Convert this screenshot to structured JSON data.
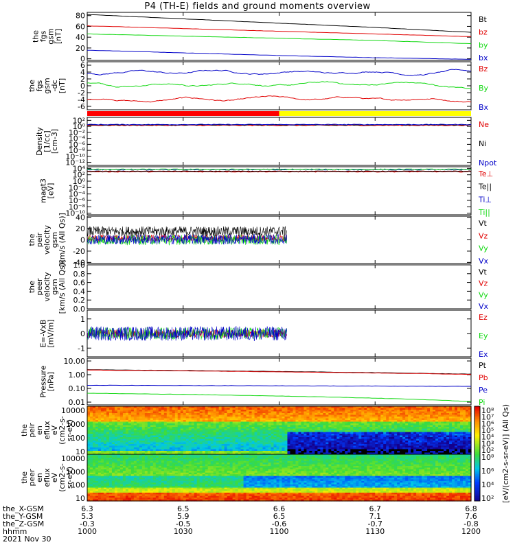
{
  "title": "P4 (TH-E) fields and ground moments overview",
  "date_label": "2021 Nov 30",
  "colors": {
    "black": "#000000",
    "red": "#e00000",
    "green": "#10d810",
    "blue": "#0000c8",
    "yellow": "#ffff00",
    "flag_red": "#ff0000"
  },
  "chart_data": [
    {
      "type": "line",
      "id": "fgs",
      "ylabel": [
        "the",
        "fgs",
        "gsm",
        "[nT]"
      ],
      "yticks": [
        "80",
        "60",
        "40",
        "20",
        "0"
      ],
      "ytick_values": [
        80,
        60,
        40,
        20,
        0
      ],
      "ylim": [
        -3,
        86
      ],
      "series": [
        {
          "name": "Bt",
          "color": "#000000",
          "x": [
            0,
            0.25,
            0.5,
            0.75,
            1
          ],
          "values": [
            82,
            74,
            66,
            58,
            49
          ]
        },
        {
          "name": "bz",
          "color": "#e00000",
          "x": [
            0,
            0.25,
            0.5,
            0.75,
            1
          ],
          "values": [
            61,
            56,
            51,
            46,
            41
          ]
        },
        {
          "name": "by",
          "color": "#10d810",
          "x": [
            0,
            0.25,
            0.5,
            0.75,
            1
          ],
          "values": [
            46,
            42,
            38,
            34,
            28
          ]
        },
        {
          "name": "bx",
          "color": "#0000c8",
          "x": [
            0,
            0.25,
            0.5,
            0.75,
            1
          ],
          "values": [
            16,
            11,
            6,
            2,
            -1
          ]
        }
      ]
    },
    {
      "type": "line",
      "id": "fgs-ac",
      "ylabel": [
        "the",
        "fgs",
        "gsm",
        "-dc",
        "[nT]"
      ],
      "yticks": [
        "6",
        "4",
        "2",
        "0",
        "-2",
        "-4",
        "-6"
      ],
      "ytick_values": [
        6,
        4,
        2,
        0,
        -2,
        -4,
        -6
      ],
      "ylim": [
        -7,
        7
      ],
      "series": [
        {
          "name": "Bz",
          "color": "#e00000",
          "base": -4,
          "amp": 0.6
        },
        {
          "name": "By",
          "color": "#10d810",
          "base": 0.5,
          "amp": 0.6
        },
        {
          "name": "Bx",
          "color": "#0000c8",
          "base": 4,
          "amp": 0.7
        }
      ]
    },
    {
      "type": "bar",
      "id": "flag",
      "segments": [
        {
          "from": 0,
          "to": 0.5,
          "color": "#ff0000"
        },
        {
          "from": 0.5,
          "to": 1,
          "color": "#ffff00"
        }
      ]
    },
    {
      "type": "line",
      "id": "density",
      "ylabel": [
        "Density",
        "[1/cc]",
        "[cm-3]"
      ],
      "yticks": [
        "10²",
        "10⁰",
        "10⁻²",
        "10⁻⁴",
        "10⁻⁶",
        "10⁻⁸",
        "10⁻¹⁰",
        "10⁻¹²"
      ],
      "ytick_values": [
        2,
        0,
        -2,
        -4,
        -6,
        -8,
        -10,
        -12
      ],
      "ylim": [
        -13,
        3
      ],
      "scale": "log",
      "series": [
        {
          "name": "Ne",
          "color": "#e00000",
          "value": 0.4
        },
        {
          "name": "Ni",
          "color": "#000000",
          "value": 0.5
        },
        {
          "name": "Npot",
          "color": "#0000c8",
          "value": 0.6
        }
      ]
    },
    {
      "type": "line",
      "id": "temperature",
      "ylabel": [
        "magt3",
        "[eV]"
      ],
      "yticks": [
        "10⁴",
        "10²",
        "10⁰",
        "10⁻²",
        "10⁻⁴",
        "10⁻⁶",
        "10⁻⁸",
        "10⁻¹⁰"
      ],
      "ytick_values": [
        4,
        2,
        0,
        -2,
        -4,
        -6,
        -8,
        -10
      ],
      "ylim": [
        -10.5,
        4.5
      ],
      "scale": "log",
      "series": [
        {
          "name": "Te⊥",
          "color": "#e00000",
          "value": 3.0
        },
        {
          "name": "Te||",
          "color": "#000000",
          "value": 3.1
        },
        {
          "name": "Ti⊥",
          "color": "#0000c8",
          "value": 3.6
        },
        {
          "name": "Ti||",
          "color": "#10d810",
          "value": 3.7
        }
      ]
    },
    {
      "type": "line",
      "id": "peir-velocity",
      "ylabel": [
        "the",
        "peir",
        "velocity",
        "gsm",
        "[km/s (All Qs)]"
      ],
      "yticks": [
        "40",
        "20",
        "0",
        "-20",
        "-40"
      ],
      "ytick_values": [
        40,
        20,
        0,
        -20,
        -40
      ],
      "ylim": [
        -42,
        42
      ],
      "data_end": 0.52,
      "series": [
        {
          "name": "Vt",
          "color": "#000000",
          "base": 15,
          "amp": 9
        },
        {
          "name": "Vz",
          "color": "#e00000",
          "base": 3,
          "amp": 6
        },
        {
          "name": "Vy",
          "color": "#10d810",
          "base": 0,
          "amp": 9
        },
        {
          "name": "Vx",
          "color": "#0000c8",
          "base": 1,
          "amp": 9
        }
      ]
    },
    {
      "type": "line",
      "id": "peer-velocity",
      "ylabel": [
        "the",
        "peer",
        "velocity",
        "gsm",
        "[km/s (All Qs)]"
      ],
      "yticks": [
        "1.0",
        "0.8",
        "0.6",
        "0.4",
        "0.2",
        "0.0"
      ],
      "ytick_values": [
        1,
        0.8,
        0.6,
        0.4,
        0.2,
        0
      ],
      "ylim": [
        0,
        1
      ],
      "series": [
        {
          "name": "Vt",
          "color": "#000000"
        },
        {
          "name": "Vz",
          "color": "#e00000"
        },
        {
          "name": "Vy",
          "color": "#10d810"
        },
        {
          "name": "Vx",
          "color": "#0000c8"
        }
      ]
    },
    {
      "type": "line",
      "id": "efield",
      "ylabel": [
        "E=-VxB",
        "[mV/m]"
      ],
      "yticks": [
        "1",
        "0",
        "-1"
      ],
      "ytick_values": [
        1,
        0,
        -1
      ],
      "ylim": [
        -1.6,
        1.6
      ],
      "data_end": 0.52,
      "series": [
        {
          "name": "Ez",
          "color": "#e00000",
          "base": 0,
          "amp": 0.28
        },
        {
          "name": "Ey",
          "color": "#10d810",
          "base": 0,
          "amp": 0.42
        },
        {
          "name": "Ex",
          "color": "#0000c8",
          "base": 0,
          "amp": 0.5
        }
      ]
    },
    {
      "type": "line",
      "id": "pressure",
      "ylabel": [
        "Pressure",
        "[nPa]"
      ],
      "yticks": [
        "10.00",
        "1.00",
        "0.10",
        "0.01"
      ],
      "ytick_values": [
        1,
        0,
        -1,
        -2
      ],
      "ylim": [
        -2.2,
        1.2
      ],
      "scale": "log",
      "series": [
        {
          "name": "Pt",
          "color": "#000000",
          "values": [
            2.3,
            1.1
          ]
        },
        {
          "name": "Pb",
          "color": "#e00000",
          "values": [
            2.2,
            1.05
          ]
        },
        {
          "name": "Pe",
          "color": "#0000c8",
          "values": [
            0.17,
            0.14
          ]
        },
        {
          "name": "Pi",
          "color": "#10d810",
          "values": [
            0.045,
            0.011
          ]
        }
      ]
    },
    {
      "type": "heatmap",
      "id": "peir-spectrogram",
      "ylabel": [
        "the",
        "peir",
        "en",
        "eflux",
        "eV",
        "(cm2-s-",
        "sr-eV)"
      ],
      "yticks": [
        "10000",
        "1000",
        "100",
        "10"
      ],
      "ytick_values": [
        4,
        3,
        2,
        1
      ],
      "ylim": [
        0.8,
        4.3
      ]
    },
    {
      "type": "heatmap",
      "id": "peer-spectrogram",
      "ylabel": [
        "the",
        "peer",
        "en",
        "eflux",
        "eV",
        "(cm2-s-",
        "sr-eV)"
      ],
      "yticks": [
        "10000",
        "1000",
        "100",
        "10"
      ],
      "ytick_values": [
        4,
        3,
        2,
        1
      ],
      "ylim": [
        0.8,
        4.3
      ]
    }
  ],
  "colorbar": {
    "ticks": [
      "10⁸",
      "10⁷",
      "10⁶",
      "10⁵",
      "10⁴",
      "10³",
      "10²"
    ],
    "ticks_lower": [
      "10⁸",
      "10⁶",
      "10⁴",
      "10²"
    ],
    "label": "[eV/(cm2-s-sr-eV)] (All Qs)"
  },
  "x_axis": {
    "rows": [
      {
        "label": "the_X-GSM",
        "values": [
          "6.3",
          "6.5",
          "6.6",
          "6.7",
          "6.8"
        ]
      },
      {
        "label": "the_Y-GSM",
        "values": [
          "5.3",
          "5.9",
          "6.5",
          "7.1",
          "7.6"
        ]
      },
      {
        "label": "the_Z-GSM",
        "values": [
          "-0.3",
          "-0.5",
          "-0.6",
          "-0.7",
          "-0.8"
        ]
      },
      {
        "label": "hhmm",
        "values": [
          "1000",
          "1030",
          "1100",
          "1130",
          "1200"
        ]
      }
    ]
  }
}
